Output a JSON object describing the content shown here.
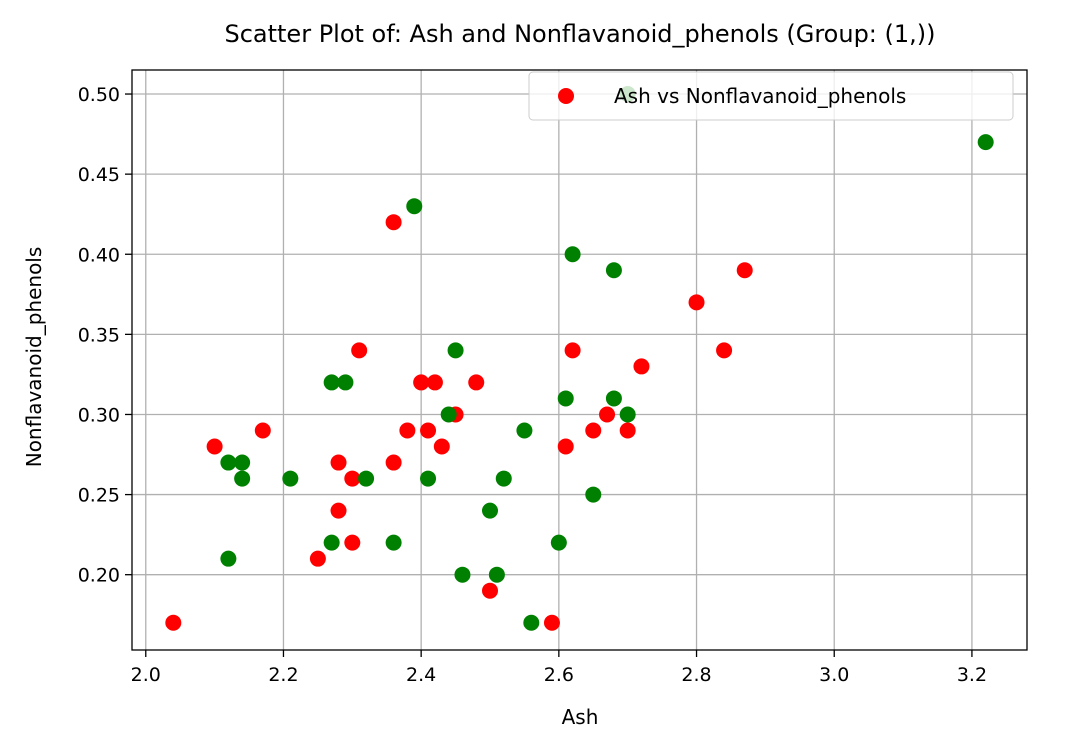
{
  "chart_data": {
    "type": "scatter",
    "title": "Scatter Plot of: Ash and Nonflavanoid_phenols (Group: (1,))",
    "xlabel": "Ash",
    "ylabel": "Nonflavanoid_phenols",
    "xlim": [
      1.98,
      3.28
    ],
    "ylim": [
      0.153,
      0.515
    ],
    "xticks": [
      2.0,
      2.2,
      2.4,
      2.6,
      2.8,
      3.0,
      3.2
    ],
    "xtick_labels": [
      "2.0",
      "2.2",
      "2.4",
      "2.6",
      "2.8",
      "3.0",
      "3.2"
    ],
    "yticks": [
      0.2,
      0.25,
      0.3,
      0.35,
      0.4,
      0.45,
      0.5
    ],
    "ytick_labels": [
      "0.20",
      "0.25",
      "0.30",
      "0.35",
      "0.40",
      "0.45",
      "0.50"
    ],
    "grid": true,
    "legend": {
      "position": "top-right",
      "entries": [
        {
          "label": "Ash vs Nonflavanoid_phenols",
          "color": "#ff0000"
        }
      ]
    },
    "series": [
      {
        "color": "#ff0000",
        "points": [
          [
            2.04,
            0.17
          ],
          [
            2.1,
            0.28
          ],
          [
            2.17,
            0.29
          ],
          [
            2.25,
            0.21
          ],
          [
            2.28,
            0.27
          ],
          [
            2.28,
            0.24
          ],
          [
            2.3,
            0.26
          ],
          [
            2.3,
            0.22
          ],
          [
            2.31,
            0.34
          ],
          [
            2.36,
            0.42
          ],
          [
            2.36,
            0.27
          ],
          [
            2.38,
            0.29
          ],
          [
            2.4,
            0.32
          ],
          [
            2.41,
            0.29
          ],
          [
            2.42,
            0.32
          ],
          [
            2.43,
            0.28
          ],
          [
            2.45,
            0.3
          ],
          [
            2.48,
            0.32
          ],
          [
            2.5,
            0.19
          ],
          [
            2.59,
            0.17
          ],
          [
            2.61,
            0.28
          ],
          [
            2.62,
            0.34
          ],
          [
            2.65,
            0.29
          ],
          [
            2.67,
            0.3
          ],
          [
            2.7,
            0.29
          ],
          [
            2.72,
            0.33
          ],
          [
            2.8,
            0.37
          ],
          [
            2.84,
            0.34
          ],
          [
            2.87,
            0.39
          ]
        ]
      },
      {
        "color": "#008000",
        "points": [
          [
            2.12,
            0.27
          ],
          [
            2.12,
            0.21
          ],
          [
            2.14,
            0.27
          ],
          [
            2.14,
            0.26
          ],
          [
            2.21,
            0.26
          ],
          [
            2.27,
            0.32
          ],
          [
            2.27,
            0.22
          ],
          [
            2.29,
            0.32
          ],
          [
            2.32,
            0.26
          ],
          [
            2.36,
            0.22
          ],
          [
            2.39,
            0.43
          ],
          [
            2.41,
            0.26
          ],
          [
            2.44,
            0.3
          ],
          [
            2.45,
            0.34
          ],
          [
            2.46,
            0.2
          ],
          [
            2.5,
            0.24
          ],
          [
            2.51,
            0.2
          ],
          [
            2.52,
            0.26
          ],
          [
            2.55,
            0.29
          ],
          [
            2.56,
            0.17
          ],
          [
            2.6,
            0.22
          ],
          [
            2.61,
            0.31
          ],
          [
            2.62,
            0.4
          ],
          [
            2.65,
            0.25
          ],
          [
            2.68,
            0.39
          ],
          [
            2.68,
            0.31
          ],
          [
            2.7,
            0.3
          ],
          [
            2.7,
            0.5
          ],
          [
            3.22,
            0.47
          ]
        ]
      }
    ]
  }
}
